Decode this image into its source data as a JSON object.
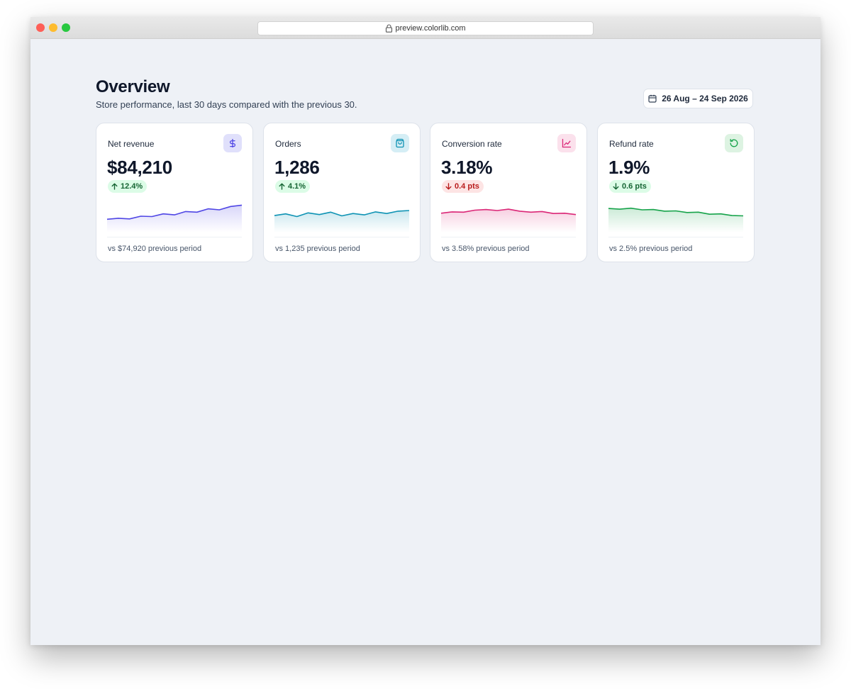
{
  "browser": {
    "url": "preview.colorlib.com"
  },
  "header": {
    "title": "Overview",
    "subtitle": "Store performance, last 30 days compared with the previous 30.",
    "date_range": "26 Aug – 24 Sep 2026"
  },
  "cards": [
    {
      "label": "Net revenue",
      "value": "$84,210",
      "delta": "12.4%",
      "delta_direction": "up",
      "footnote": "vs $74,920 previous period",
      "icon": "dollar-icon",
      "accent": "#4f46e5",
      "icon_bg": "#e0e0fb",
      "sparkline": [
        2.0,
        2.6,
        2.2,
        3.8,
        3.6,
        5.2,
        4.6,
        6.6,
        6.2,
        8.2,
        7.6,
        9.6,
        10.4
      ]
    },
    {
      "label": "Orders",
      "value": "1,286",
      "delta": "4.1%",
      "delta_direction": "up",
      "footnote": "vs 1,235 previous period",
      "icon": "shopping-bag-icon",
      "accent": "#0e93b4",
      "icon_bg": "#d5eef5",
      "sparkline": [
        4.2,
        5.2,
        3.6,
        5.8,
        4.8,
        6.2,
        4.0,
        5.4,
        4.6,
        6.4,
        5.4,
        6.8,
        7.2
      ]
    },
    {
      "label": "Conversion rate",
      "value": "3.18%",
      "delta": "0.4 pts",
      "delta_direction": "down",
      "footnote": "vs 3.58% previous period",
      "icon": "line-chart-icon",
      "accent": "#db2777",
      "icon_bg": "#fbe1ec",
      "sparkline": [
        5.6,
        6.4,
        6.2,
        7.4,
        7.8,
        7.2,
        8.0,
        6.8,
        6.2,
        6.6,
        5.4,
        5.6,
        4.8
      ]
    },
    {
      "label": "Refund rate",
      "value": "1.9%",
      "delta": "0.6 pts",
      "delta_direction": "down",
      "footnote": "vs 2.5% previous period",
      "icon": "refresh-icon",
      "accent": "#16a34a",
      "icon_bg": "#ddf3e2",
      "sparkline": [
        8.4,
        8.0,
        8.6,
        7.6,
        7.8,
        6.8,
        7.0,
        6.0,
        6.2,
        5.0,
        5.2,
        4.2,
        4.0
      ]
    }
  ]
}
